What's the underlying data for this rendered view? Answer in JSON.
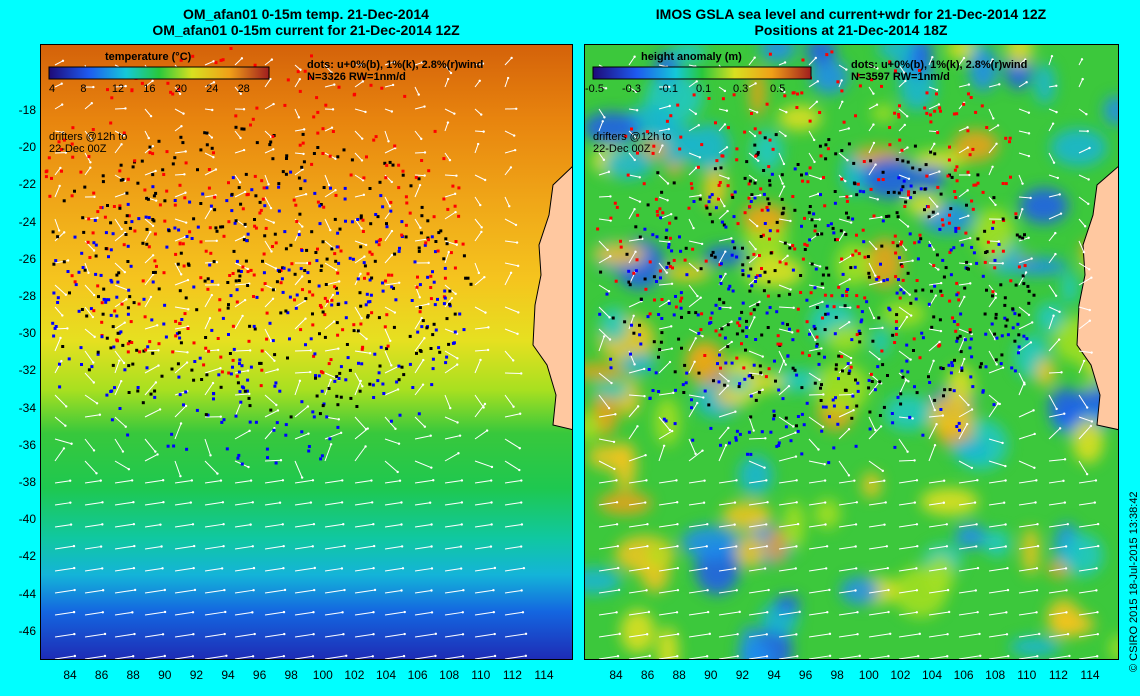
{
  "left": {
    "title_line1": "OM_afan01 0-15m temp. 21-Dec-2014",
    "title_line2": "OM_afan01 0-15m current for 21-Dec-2014 12Z",
    "legend_title": "temperature (°C)",
    "legend_ticks": [
      "4",
      "8",
      "12",
      "16",
      "20",
      "24",
      "28"
    ],
    "dots_line1": "dots: u+0%(b), 1%(k), 2.8%(r)wind",
    "dots_line2": "N=3326 RW=1nm/d",
    "drifters_line1": "drifters @12h to",
    "drifters_line2": "22-Dec 00Z"
  },
  "right": {
    "title_line1": "IMOS GSLA sea level and current+wdr for 21-Dec-2014 12Z",
    "title_line2": "Positions at 21-Dec-2014 18Z",
    "legend_title": "height anomaly (m)",
    "legend_ticks": [
      "-0.5",
      "-0.3",
      "-0.1",
      "0.1",
      "0.3",
      "0.5"
    ],
    "dots_line1": "dots: u+0%(b), 1%(k), 2.8%(r)wind",
    "dots_line2": "N=3597 RW=1nm/d",
    "drifters_line1": "drifters @12h to",
    "drifters_line2": "22-Dec 00Z"
  },
  "y_ticks": [
    "-18",
    "-20",
    "-22",
    "-24",
    "-26",
    "-28",
    "-30",
    "-32",
    "-34",
    "-36",
    "-38",
    "-40",
    "-42",
    "-44",
    "-46"
  ],
  "x_ticks": [
    "84",
    "86",
    "88",
    "90",
    "92",
    "94",
    "96",
    "98",
    "100",
    "102",
    "104",
    "106",
    "108",
    "110",
    "112",
    "114"
  ],
  "copyright": "© CSIRO 2015   18-Jul-2015 13:38:42",
  "colors": {
    "background": "#00ffff",
    "land": "#ffc8a0",
    "dots_b": "#0000ff",
    "dots_k": "#000000",
    "dots_r": "#ff0000"
  }
}
